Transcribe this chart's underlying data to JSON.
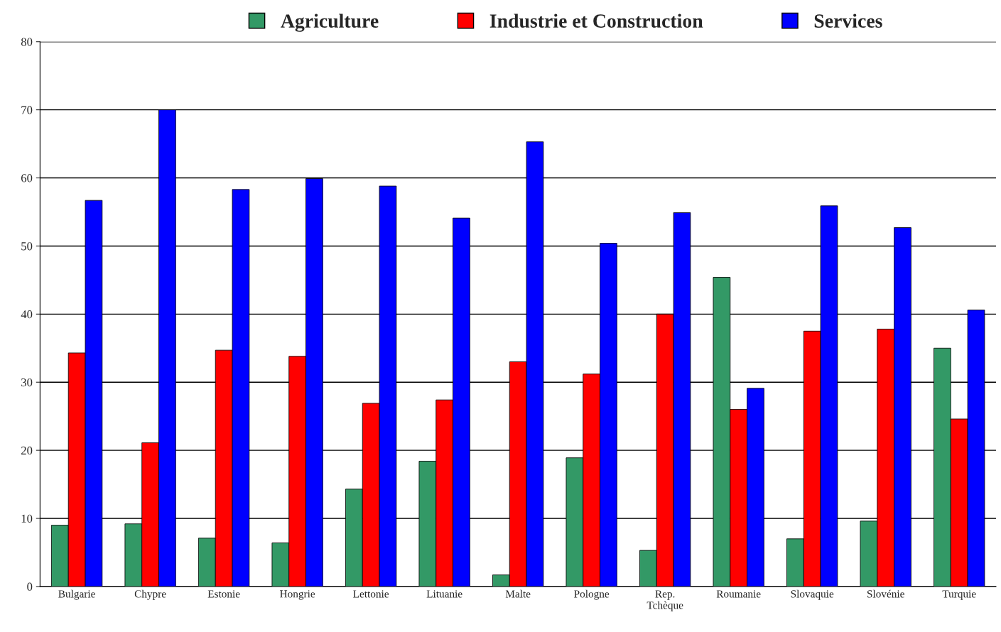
{
  "chart_data": {
    "type": "bar",
    "categories": [
      "Bulgarie",
      "Chypre",
      "Estonie",
      "Hongrie",
      "Lettonie",
      "Lituanie",
      "Malte",
      "Pologne",
      "Rep.\nTchèque",
      "Roumanie",
      "Slovaquie",
      "Slovénie",
      "Turquie"
    ],
    "series": [
      {
        "name": "Agriculture",
        "color": "#339966",
        "values": [
          9.0,
          9.2,
          7.1,
          6.4,
          14.3,
          18.4,
          1.7,
          18.9,
          5.3,
          45.4,
          7.0,
          9.6,
          35.0
        ]
      },
      {
        "name": "Industrie et Construction",
        "color": "#ff0000",
        "values": [
          34.3,
          21.1,
          34.7,
          33.8,
          26.9,
          27.4,
          33.0,
          31.2,
          40.0,
          26.0,
          37.5,
          37.8,
          24.6
        ]
      },
      {
        "name": "Services",
        "color": "#0000ff",
        "values": [
          56.7,
          70.0,
          58.3,
          59.9,
          58.8,
          54.1,
          65.3,
          50.4,
          54.9,
          29.1,
          55.9,
          52.7,
          40.6
        ]
      }
    ],
    "ylim": [
      0,
      80
    ],
    "yticks": [
      0,
      10,
      20,
      30,
      40,
      50,
      60,
      70,
      80
    ],
    "grid": "y",
    "legend": "top"
  }
}
